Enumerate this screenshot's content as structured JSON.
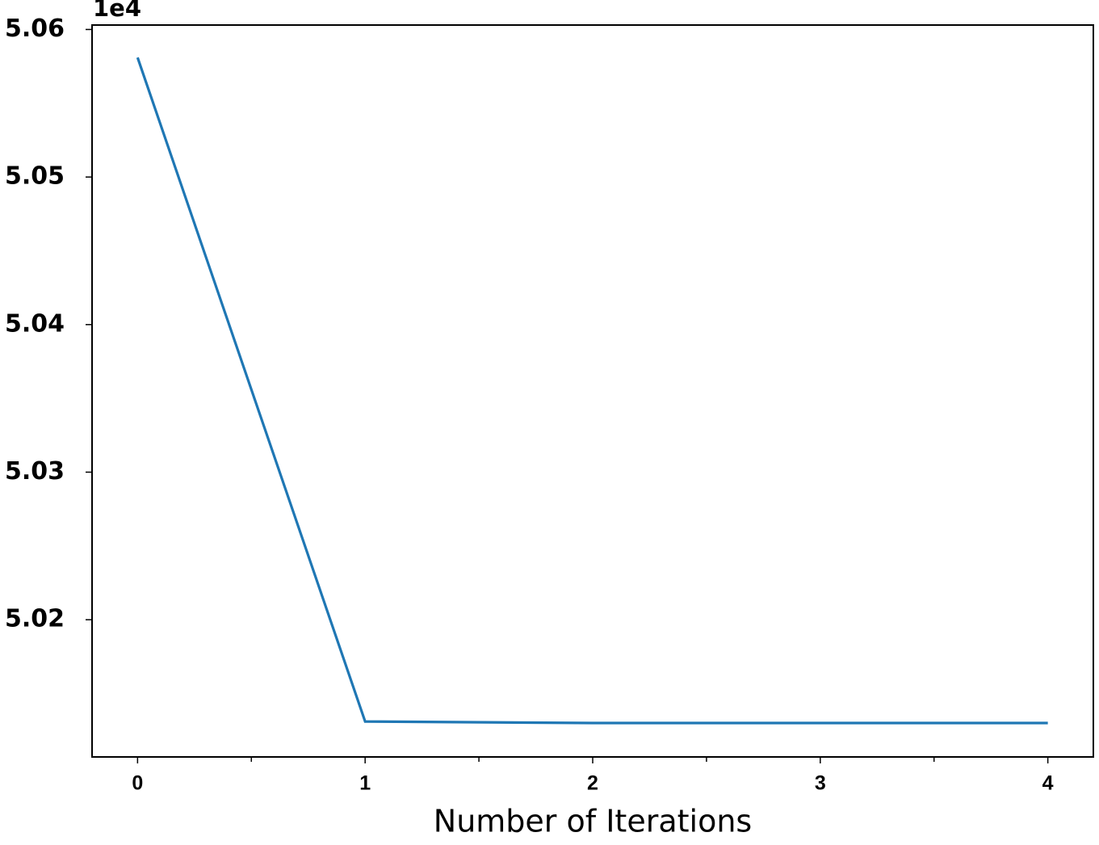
{
  "chart_data": {
    "type": "line",
    "x_label": "Number of Iterations",
    "y_offset_label": "1e4",
    "x": [
      0,
      1,
      2,
      3,
      4
    ],
    "series": [
      {
        "color": "#1f77b4",
        "values": [
          5.0581,
          5.0131,
          5.013,
          5.013,
          5.013
        ]
      }
    ],
    "xlim": [
      -0.2,
      4.2
    ],
    "xticks": [
      0,
      1,
      2,
      3,
      4
    ],
    "xminor_ticks": [
      0.5,
      1.5,
      2.5,
      3.5
    ],
    "ylim": [
      5.0107,
      5.0603
    ],
    "yticks": [
      5.02,
      5.03,
      5.04,
      5.05,
      5.06
    ],
    "grid": false
  }
}
